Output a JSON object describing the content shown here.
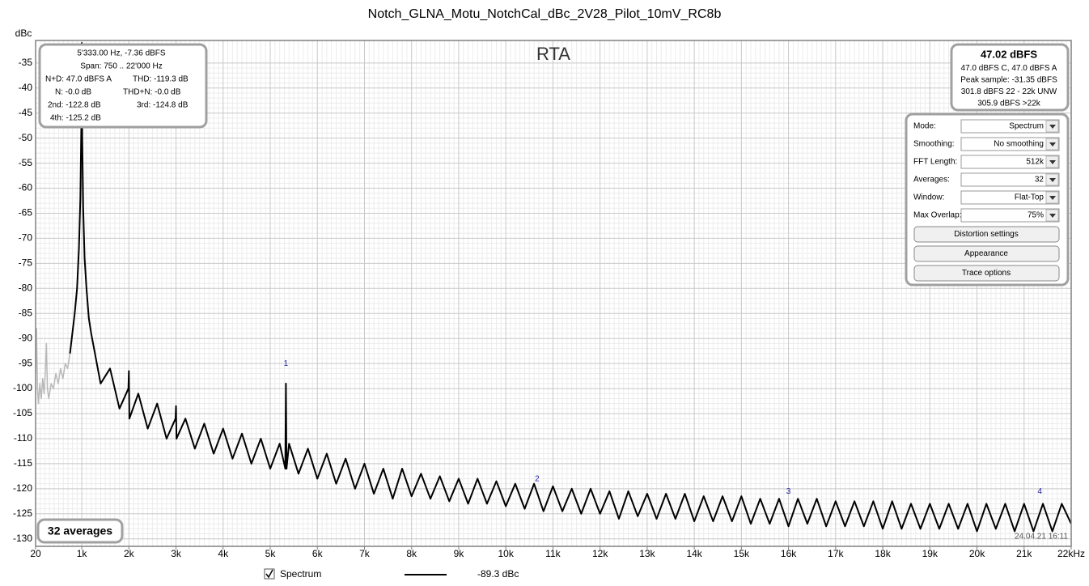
{
  "chart_data": {
    "type": "line",
    "title": "Notch_GLNA_Motu_NotchCal_dBc_2V28_Pilot_10mV_RC8b",
    "y_label": "dBc",
    "panel_label": "RTA",
    "xlim": [
      20,
      22000
    ],
    "xticks": [
      20,
      {
        "value": 1000,
        "label": "1k"
      },
      {
        "value": 2000,
        "label": "2k"
      },
      {
        "value": 3000,
        "label": "3k"
      },
      {
        "value": 4000,
        "label": "4k"
      },
      {
        "value": 5000,
        "label": "5k"
      },
      {
        "value": 6000,
        "label": "6k"
      },
      {
        "value": 7000,
        "label": "7k"
      },
      {
        "value": 8000,
        "label": "8k"
      },
      {
        "value": 9000,
        "label": "9k"
      },
      {
        "value": 10000,
        "label": "10k"
      },
      {
        "value": 11000,
        "label": "11k"
      },
      {
        "value": 12000,
        "label": "12k"
      },
      {
        "value": 13000,
        "label": "13k"
      },
      {
        "value": 14000,
        "label": "14k"
      },
      {
        "value": 15000,
        "label": "15k"
      },
      {
        "value": 16000,
        "label": "16k"
      },
      {
        "value": 17000,
        "label": "17k"
      },
      {
        "value": 18000,
        "label": "18k"
      },
      {
        "value": 19000,
        "label": "19k"
      },
      {
        "value": 20000,
        "label": "20k"
      },
      {
        "value": 21000,
        "label": "21k"
      },
      {
        "value": 22000,
        "label": "22kHz"
      }
    ],
    "ylim": [
      -131.5,
      -30.5
    ],
    "yticks": [
      -35,
      -40,
      -45,
      -50,
      -55,
      -60,
      -65,
      -70,
      -75,
      -80,
      -85,
      -90,
      -95,
      -100,
      -105,
      -110,
      -115,
      -120,
      -125,
      -130
    ],
    "grid": true,
    "series": [
      {
        "color": "#b8b8b8",
        "x": [
          20,
          40,
          60,
          80,
          110,
          140,
          170,
          200,
          230,
          250,
          270,
          300,
          350,
          400,
          450,
          500,
          550,
          600,
          650,
          700,
          750
        ],
        "values": [
          -97,
          -88,
          -100,
          -103,
          -99,
          -102,
          -98,
          -101,
          -96,
          -91,
          -100,
          -102,
          -99,
          -100,
          -97,
          -99,
          -96,
          -98,
          -95,
          -96,
          -93
        ]
      },
      {
        "name": "Spectrum",
        "color": "#000000",
        "x": [
          750,
          800,
          850,
          900,
          940,
          970,
          990,
          1000,
          1010,
          1030,
          1060,
          1100,
          1150,
          1200,
          1400,
          1600,
          1800,
          1990,
          2000,
          2010,
          2200,
          2400,
          2600,
          2800,
          2990,
          3000,
          3010,
          3200,
          3400,
          3600,
          3800,
          4000,
          4200,
          4400,
          4600,
          4800,
          5000,
          5200,
          5320,
          5333,
          5346,
          5400,
          5600,
          5800,
          6000,
          6200,
          6400,
          6600,
          6800,
          7000,
          7200,
          7400,
          7600,
          7800,
          8000,
          8200,
          8400,
          8600,
          8800,
          9000,
          9200,
          9400,
          9600,
          9800,
          10000,
          10200,
          10400,
          10600,
          10800,
          11000,
          11200,
          11400,
          11600,
          11800,
          12000,
          12200,
          12400,
          12600,
          12800,
          13000,
          13200,
          13400,
          13600,
          13800,
          14000,
          14200,
          14400,
          14600,
          14800,
          15000,
          15200,
          15400,
          15600,
          15800,
          16000,
          16200,
          16400,
          16600,
          16800,
          17000,
          17200,
          17400,
          17600,
          17800,
          18000,
          18200,
          18400,
          18600,
          18800,
          19000,
          19200,
          19400,
          19600,
          19800,
          20000,
          20200,
          20400,
          20600,
          20800,
          21000,
          21200,
          21400,
          21600,
          21800,
          22000
        ],
        "values": [
          -93,
          -89,
          -85,
          -80,
          -72,
          -62,
          -48,
          -31,
          -50,
          -64,
          -74,
          -80,
          -86,
          -89,
          -99,
          -96,
          -104,
          -100,
          -96.5,
          -106,
          -101,
          -108,
          -103,
          -110,
          -106,
          -103.5,
          -110,
          -106,
          -112,
          -107,
          -113,
          -108,
          -114,
          -109,
          -115,
          -110,
          -116,
          -111,
          -116,
          -99,
          -116,
          -111,
          -117,
          -112,
          -118,
          -113,
          -119,
          -114,
          -120,
          -115,
          -121,
          -116,
          -122,
          -116,
          -121.5,
          -117,
          -122,
          -117.5,
          -122.5,
          -118,
          -123,
          -118,
          -123,
          -118.5,
          -123.5,
          -119,
          -124,
          -119,
          -124.5,
          -119.5,
          -124.5,
          -120,
          -125,
          -120,
          -125,
          -120.5,
          -126,
          -120.5,
          -125.5,
          -121,
          -126,
          -121,
          -126,
          -121,
          -126.5,
          -121.5,
          -126.5,
          -121.5,
          -126.5,
          -121.5,
          -127,
          -122,
          -127,
          -122,
          -127.5,
          -122,
          -127,
          -122,
          -127.5,
          -122.5,
          -127.5,
          -122.5,
          -127.5,
          -122.5,
          -128,
          -122.5,
          -128,
          -123,
          -128,
          -123,
          -128,
          -123,
          -128,
          -123,
          -128.5,
          -123,
          -128,
          -123,
          -128.5,
          -123,
          -128.5,
          -123,
          -128.5,
          -123,
          -127
        ]
      }
    ],
    "legend_readout": "-89.3 dBc",
    "harmonic_labels": [
      {
        "text": "1",
        "x": 5333,
        "y": -97
      },
      {
        "text": "2",
        "x": 10666,
        "y": -120
      },
      {
        "text": "3",
        "x": 16000,
        "y": -122.5
      },
      {
        "text": "4",
        "x": 21333,
        "y": -122.5
      }
    ]
  },
  "ui": {
    "info": [
      "5'333.00 Hz, -7.36 dBFS",
      "Span: 750 .. 22'000 Hz",
      "N+D: 47.0 dBFS A",
      "THD: -119.3 dB",
      "N: -0.0 dB",
      "THD+N: -0.0 dB",
      "2nd: -122.8 dB",
      "3rd: -124.8 dB",
      "4th: -125.2 dB"
    ],
    "level": [
      "47.02 dBFS",
      "47.0 dBFS C, 47.0 dBFS A",
      "Peak sample: -31.35 dBFS",
      "301.8 dBFS 22 - 22k UNW",
      "305.9 dBFS >22k"
    ],
    "settings": [
      {
        "label": "Mode:",
        "value": "Spectrum"
      },
      {
        "label": "Smoothing:",
        "value": "No  smoothing"
      },
      {
        "label": "FFT Length:",
        "value": "512k"
      },
      {
        "label": "Averages:",
        "value": "32"
      },
      {
        "label": "Window:",
        "value": "Flat-Top"
      },
      {
        "label": "Max Overlap:",
        "value": "75%"
      }
    ],
    "buttons": [
      "Distortion settings",
      "Appearance",
      "Trace options"
    ],
    "averages_badge": "32 averages",
    "timestamp": "24.04.21 16:11"
  }
}
